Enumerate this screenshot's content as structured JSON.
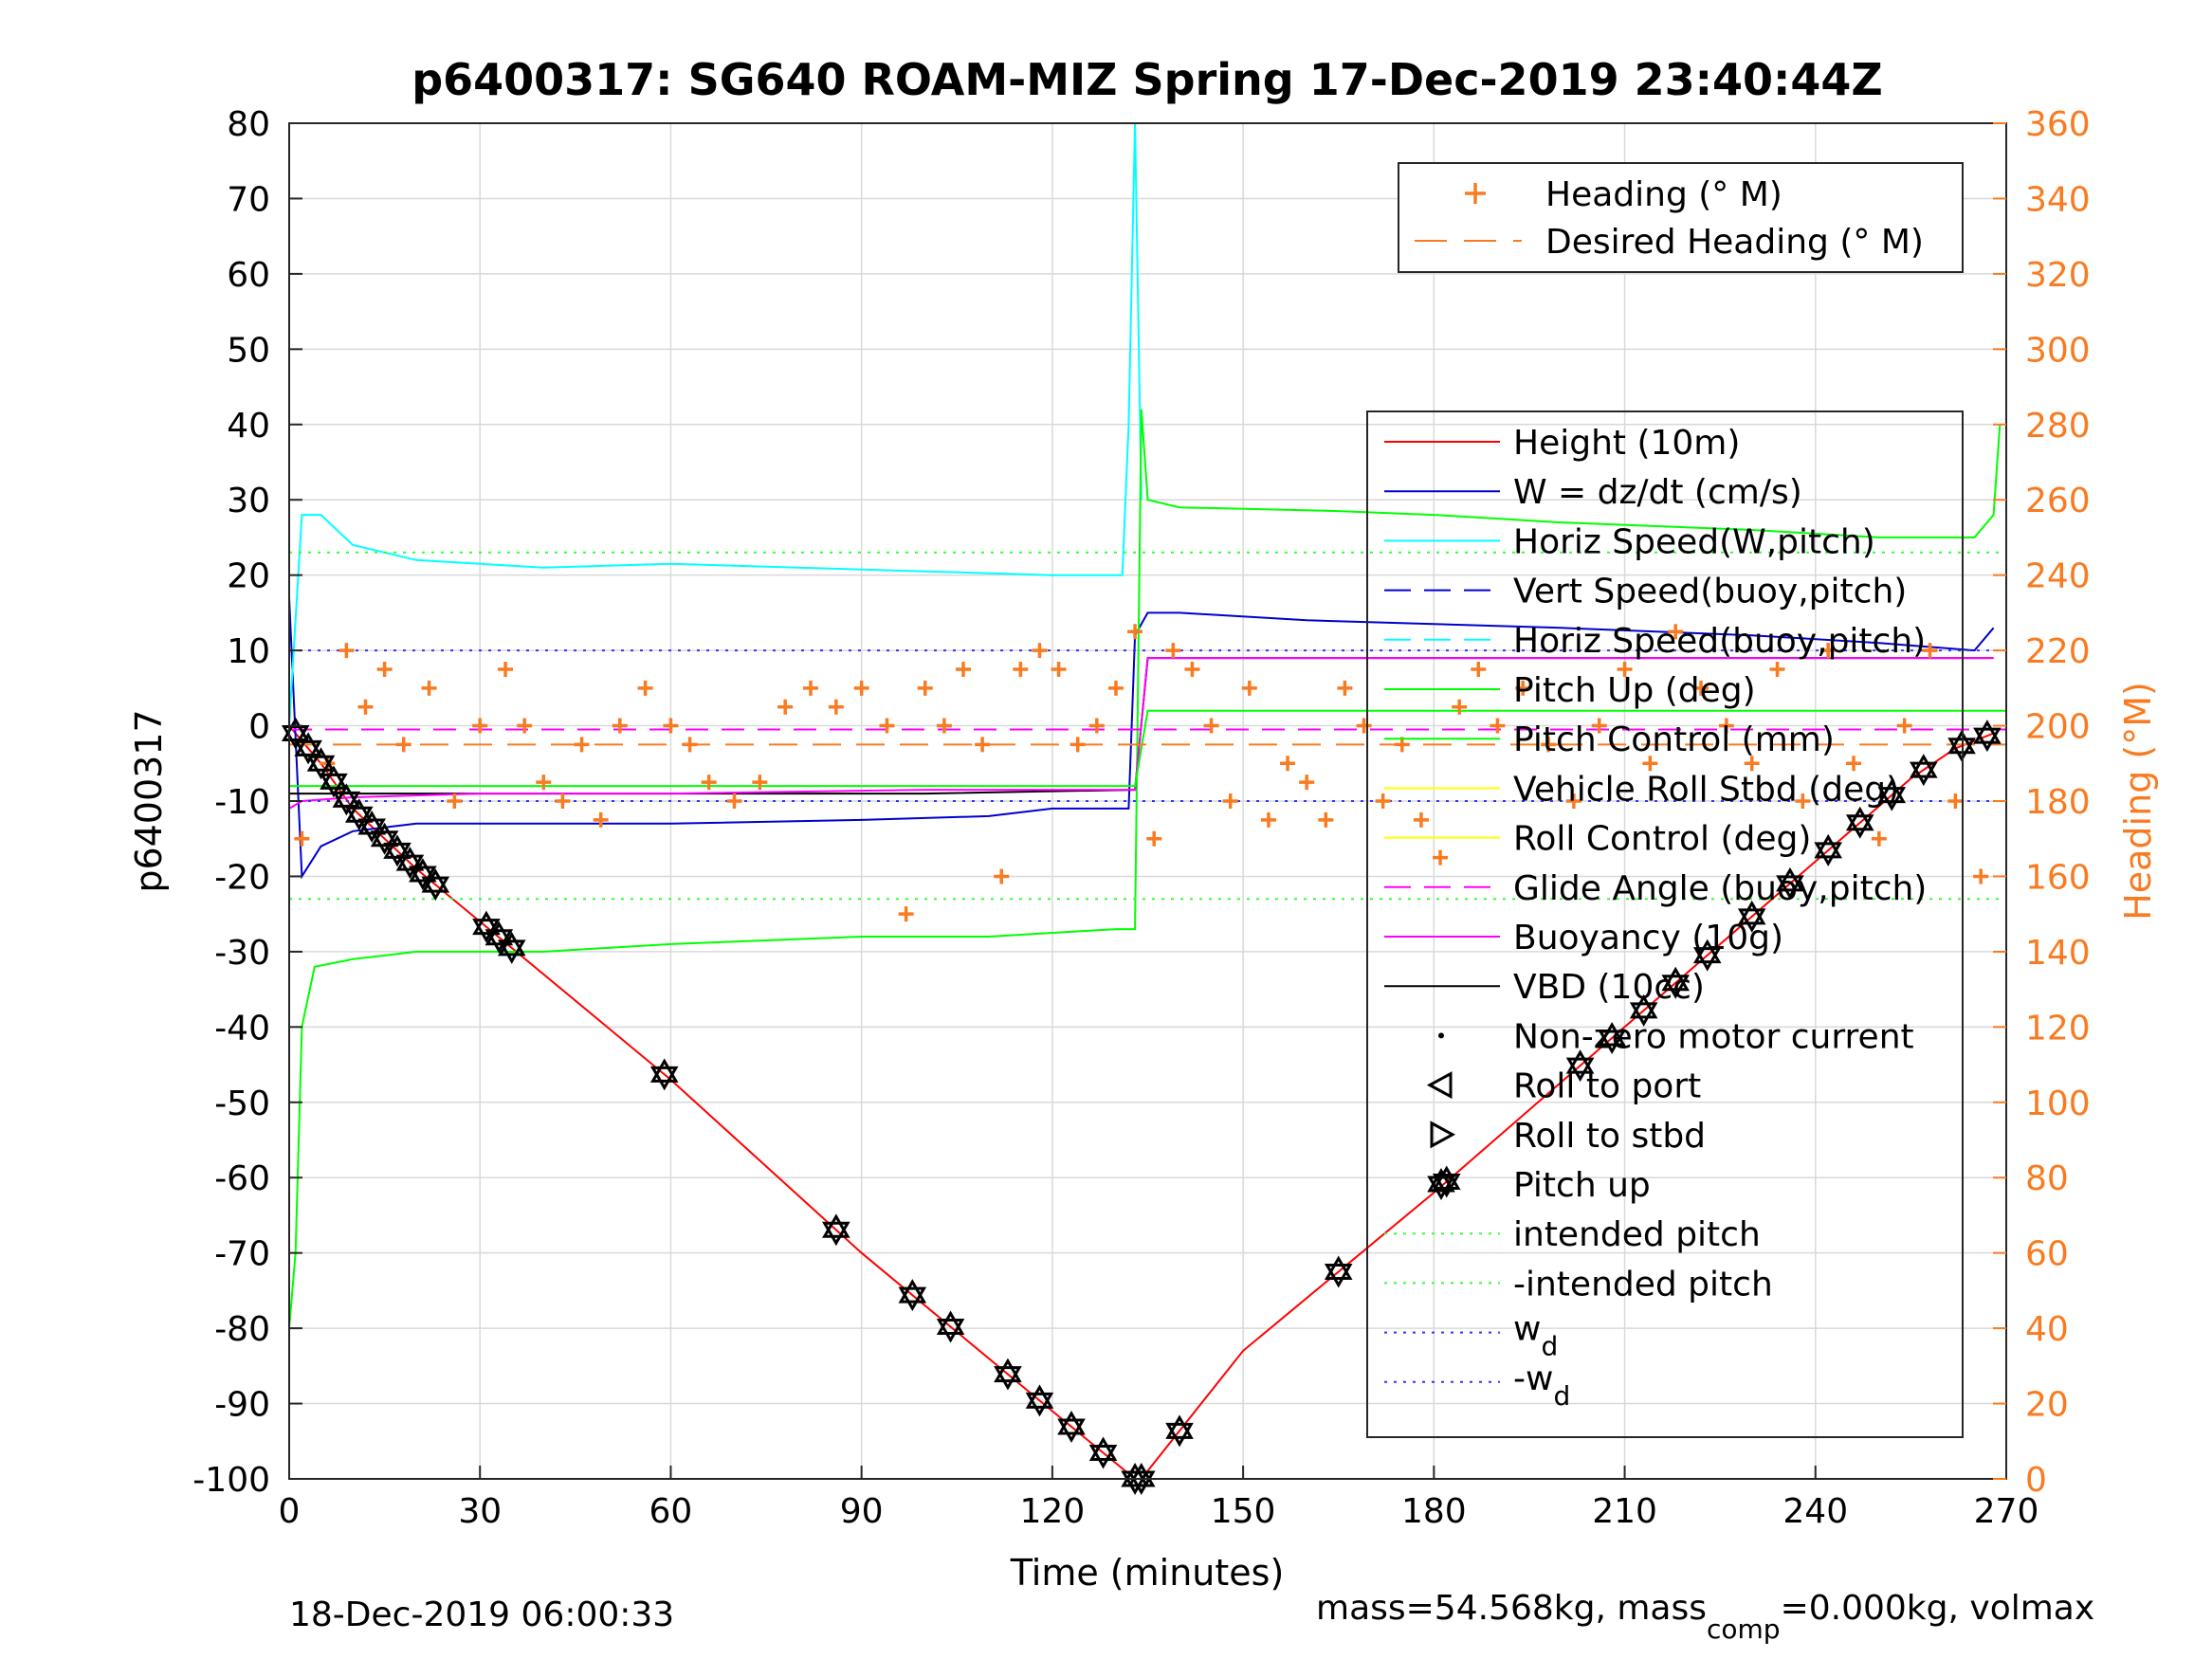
{
  "chart_data": {
    "type": "line",
    "title": "p6400317: SG640 ROAM-MIZ Spring 17-Dec-2019 23:40:44Z",
    "xlabel": "Time (minutes)",
    "ylabel": "p6400317",
    "y2label": "Heading (°M)",
    "xlim": [
      0,
      270
    ],
    "ylim": [
      -100,
      80
    ],
    "y2lim": [
      0,
      360
    ],
    "xticks": [
      0,
      30,
      60,
      90,
      120,
      150,
      180,
      210,
      240,
      270
    ],
    "yticks": [
      80,
      70,
      60,
      50,
      40,
      30,
      20,
      10,
      0,
      -10,
      -20,
      -30,
      -40,
      -50,
      -60,
      -70,
      -80,
      -90,
      -100
    ],
    "y2ticks": [
      360,
      340,
      320,
      300,
      280,
      260,
      240,
      220,
      200,
      180,
      160,
      140,
      120,
      100,
      80,
      60,
      40,
      20,
      0
    ],
    "grid": true,
    "colors": {
      "height": "#ff0000",
      "w": "#0000cc",
      "horiz": "#00ffff",
      "pitch": "#00ff00",
      "roll": "#ffff00",
      "glide": "#ff00ff",
      "vbd": "#000000",
      "heading": "#f97b21",
      "intended_pitch": "#33ff33",
      "wd": "#3333ff"
    },
    "legend_heading": {
      "position": "top-right",
      "entries": [
        "Heading (° M)",
        "Desired Heading (° M)"
      ]
    },
    "legend_main": {
      "position": "right",
      "entries": [
        "Height (10m)",
        "W = dz/dt (cm/s)",
        "Horiz Speed(W,pitch)",
        "Vert Speed(buoy,pitch)",
        "Horiz Speed(buoy,pitch)",
        "Pitch Up (deg)",
        "Pitch Control (mm)",
        "Vehicle Roll Stbd (deg)",
        "Roll Control (deg)",
        "Glide Angle (buoy,pitch)",
        "Buoyancy (10g)",
        "VBD (10cc)",
        "Non-zero motor current",
        "Roll to port",
        "Roll to stbd",
        "Pitch up",
        "intended pitch",
        "-intended pitch"
      ],
      "wd_base": [
        "w",
        "-w"
      ],
      "wd_sub": "d"
    },
    "series": [
      {
        "name": "Height (10m)",
        "x": [
          0,
          5,
          10,
          20,
          30,
          60,
          90,
          120,
          133,
          134,
          150,
          180,
          210,
          240,
          255,
          262,
          268
        ],
        "y": [
          0,
          -5,
          -11,
          -19,
          -26,
          -47,
          -70,
          -91,
          -100,
          -100,
          -83,
          -62,
          -40,
          -18,
          -7,
          -3,
          -1
        ]
      },
      {
        "name": "W = dz/dt (cm/s)",
        "x": [
          0,
          2,
          5,
          10,
          20,
          40,
          60,
          90,
          110,
          120,
          132,
          133,
          135,
          140,
          160,
          200,
          230,
          250,
          265,
          268
        ],
        "y": [
          17,
          -20,
          -16,
          -14,
          -13,
          -13,
          -13,
          -12.5,
          -12,
          -11,
          -11,
          12,
          15,
          15,
          14,
          13,
          12,
          11,
          10,
          13
        ]
      },
      {
        "name": "Horiz Speed(W,pitch)",
        "x": [
          0,
          2,
          5,
          10,
          20,
          40,
          60,
          80,
          100,
          120,
          131,
          132,
          133,
          134
        ],
        "y": [
          0,
          28,
          28,
          24,
          22,
          21,
          21.5,
          21,
          20.5,
          20,
          20,
          40,
          80,
          30
        ]
      },
      {
        "name": "Pitch Up (deg)",
        "x": [
          0,
          1,
          2,
          4,
          10,
          20,
          40,
          60,
          90,
          110,
          130,
          133,
          134,
          135,
          140,
          165,
          180,
          200,
          230,
          250,
          265,
          268,
          269
        ],
        "y": [
          -80,
          -70,
          -40,
          -32,
          -31,
          -30,
          -30,
          -29,
          -28,
          -28,
          -27,
          -27,
          42,
          30,
          29,
          28.5,
          28,
          27,
          26,
          25,
          25,
          28,
          40
        ]
      },
      {
        "name": "VBD (10cc)",
        "x": [
          0,
          2,
          10,
          30,
          60,
          100,
          133,
          135,
          200,
          268
        ],
        "y": [
          -9,
          -9,
          -9,
          -9,
          -9,
          -9,
          -8.5,
          9,
          9,
          9
        ]
      },
      {
        "name": "Buoyancy (10g)",
        "x": [
          0,
          2,
          10,
          30,
          60,
          100,
          133,
          135,
          200,
          268
        ],
        "y": [
          -11,
          -10,
          -9.5,
          -9,
          -9,
          -8.5,
          -8.5,
          9,
          9,
          9
        ]
      },
      {
        "name": "Glide Angle (buoy,pitch)",
        "x": [
          0,
          270
        ],
        "y": [
          -0.5,
          -0.5
        ]
      },
      {
        "name": "Pitch Control (mm)",
        "x": [
          0,
          133,
          135,
          270
        ],
        "y": [
          -8,
          -8,
          2,
          2
        ]
      },
      {
        "name": "intended pitch",
        "x": [
          0,
          270
        ],
        "y": [
          23,
          23
        ]
      },
      {
        "name": "-intended pitch",
        "x": [
          0,
          270
        ],
        "y": [
          -23,
          -23
        ]
      },
      {
        "name": "w_d",
        "x": [
          0,
          270
        ],
        "y": [
          10,
          10
        ]
      },
      {
        "name": "-w_d",
        "x": [
          0,
          270
        ],
        "y": [
          -10,
          -10
        ]
      },
      {
        "name": "Desired Heading (° M)",
        "x": [
          0,
          270
        ],
        "y2": [
          195,
          195
        ]
      },
      {
        "name": "Heading (° M)",
        "x": [
          2,
          6,
          9,
          12,
          15,
          18,
          22,
          26,
          30,
          34,
          37,
          40,
          43,
          46,
          49,
          52,
          56,
          60,
          63,
          66,
          70,
          74,
          78,
          82,
          86,
          90,
          94,
          97,
          100,
          103,
          106,
          109,
          112,
          115,
          118,
          121,
          124,
          127,
          130,
          133,
          136,
          139,
          142,
          145,
          148,
          151,
          154,
          157,
          160,
          163,
          166,
          169,
          172,
          175,
          178,
          181,
          184,
          187,
          190,
          194,
          198,
          202,
          206,
          210,
          214,
          218,
          222,
          226,
          230,
          234,
          238,
          242,
          246,
          250,
          254,
          258,
          262,
          266
        ],
        "y2": [
          170,
          190,
          220,
          205,
          215,
          195,
          210,
          180,
          200,
          215,
          200,
          185,
          180,
          195,
          175,
          200,
          210,
          200,
          195,
          185,
          180,
          185,
          205,
          210,
          205,
          210,
          200,
          150,
          210,
          200,
          215,
          195,
          160,
          215,
          220,
          215,
          195,
          200,
          210,
          225,
          170,
          220,
          215,
          200,
          180,
          210,
          175,
          190,
          185,
          175,
          210,
          200,
          180,
          195,
          175,
          165,
          205,
          215,
          200,
          210,
          195,
          180,
          200,
          215,
          190,
          225,
          210,
          200,
          190,
          215,
          180,
          220,
          190,
          170,
          200,
          220,
          180,
          160
        ]
      }
    ],
    "markers": {
      "pitch_up": {
        "name": "Pitch up",
        "x": [
          1,
          3,
          5,
          7,
          9,
          11,
          13,
          15,
          17,
          19,
          21,
          23,
          31,
          33,
          35,
          59,
          86,
          98,
          104,
          113,
          118,
          123,
          128,
          133,
          134,
          140,
          165,
          182,
          203,
          208,
          213,
          218,
          223,
          230,
          236,
          242,
          247,
          252,
          257,
          263,
          267
        ]
      }
    },
    "footer_left": "18-Dec-2019 06:00:33",
    "footer_right_base": "mass=54.568kg, mass",
    "footer_right_sub": "comp",
    "footer_right_tail": "=0.000kg, volmax"
  }
}
